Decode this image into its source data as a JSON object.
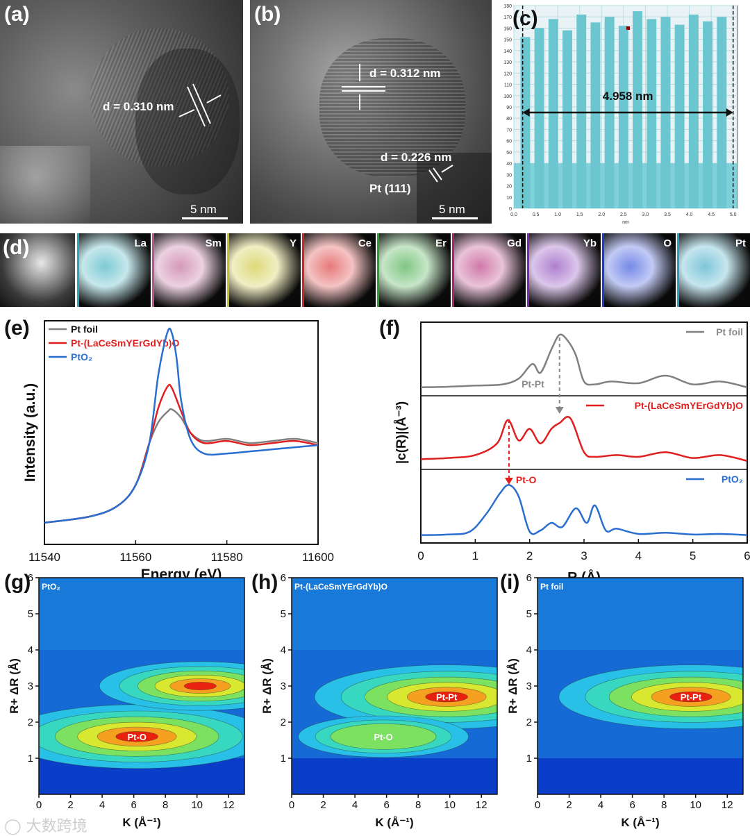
{
  "panels": {
    "a": {
      "label": "(a)",
      "d_spacing": "d = 0.310 nm",
      "scale": "5 nm"
    },
    "b": {
      "label": "(b)",
      "d_spacing_1": "d = 0.312 nm",
      "d_spacing_2": "d = 0.226 nm",
      "plane": "Pt (111)",
      "scale": "5 nm"
    },
    "c": {
      "label": "(c)",
      "distance": "4.958 nm",
      "x_unit": "nm"
    },
    "d": {
      "label": "(d)",
      "elements": [
        "La",
        "Sm",
        "Y",
        "Ce",
        "Er",
        "Gd",
        "Yb",
        "O",
        "Pt"
      ]
    },
    "e": {
      "label": "(e)"
    },
    "f": {
      "label": "(f)",
      "annotation_ptpt": "Pt-Pt",
      "annotation_pto": "Pt-O"
    },
    "g": {
      "label": "(g)",
      "inset": "PtO₂",
      "feature": "Pt-O"
    },
    "h": {
      "label": "(h)",
      "inset": "Pt-(LaCeSmYErGdYb)O",
      "feature_1": "Pt-Pt",
      "feature_2": "Pt-O"
    },
    "i": {
      "label": "(i)",
      "inset": "Pt foil",
      "feature": "Pt-Pt"
    }
  },
  "watermark": "大数跨境",
  "colors": {
    "pt_foil": "#808080",
    "sample": "#e02020",
    "pto2": "#2a6fd0",
    "tem_bar": "#7fd0d8"
  },
  "chart_data": [
    {
      "id": "c",
      "type": "bar",
      "title": "",
      "xlabel": "nm",
      "ylabel": "",
      "xlim": [
        0,
        5.1
      ],
      "ylim": [
        0,
        180
      ],
      "xticks": [
        "0.0",
        "0.5",
        "1.0",
        "1.5",
        "2.0",
        "2.5",
        "3.0",
        "3.5",
        "4.0",
        "4.5",
        "5.0"
      ],
      "yticks": [
        "0",
        "10",
        "20",
        "30",
        "40",
        "50",
        "60",
        "70",
        "80",
        "90",
        "100",
        "110",
        "120",
        "130",
        "140",
        "150",
        "160",
        "170",
        "180"
      ],
      "peak_positions": [
        0.26,
        0.58,
        0.9,
        1.22,
        1.54,
        1.86,
        2.18,
        2.5,
        2.82,
        3.14,
        3.46,
        3.78,
        4.1,
        4.42,
        4.74
      ],
      "peak_values": [
        152,
        160,
        168,
        158,
        172,
        165,
        170,
        162,
        175,
        168,
        170,
        163,
        172,
        166,
        170
      ],
      "baseline": 40,
      "marker_start": 0.2,
      "marker_end": 5.0
    },
    {
      "id": "e",
      "type": "line",
      "title": "",
      "xlabel": "Energy (eV)",
      "ylabel": "Intensity (a.u.)",
      "xlim": [
        11540,
        11600
      ],
      "xticks": [
        "11540",
        "11560",
        "11580",
        "11600"
      ],
      "legend_position": "top-left",
      "series": [
        {
          "name": "Pt foil",
          "x": [
            11540,
            11550,
            11556,
            11560,
            11563,
            11565,
            11567,
            11568,
            11570,
            11572,
            11575,
            11580,
            11585,
            11590,
            11595,
            11600
          ],
          "y": [
            0.07,
            0.1,
            0.15,
            0.25,
            0.45,
            0.55,
            0.6,
            0.61,
            0.57,
            0.5,
            0.46,
            0.47,
            0.45,
            0.46,
            0.47,
            0.45
          ]
        },
        {
          "name": "Pt-(LaCeSmYErGdYb)O",
          "x": [
            11540,
            11550,
            11556,
            11560,
            11563,
            11565,
            11567,
            11568,
            11570,
            11572,
            11575,
            11580,
            11585,
            11590,
            11595,
            11600
          ],
          "y": [
            0.07,
            0.1,
            0.15,
            0.25,
            0.45,
            0.62,
            0.72,
            0.71,
            0.6,
            0.5,
            0.45,
            0.46,
            0.44,
            0.45,
            0.46,
            0.44
          ]
        },
        {
          "name": "PtO₂",
          "x": [
            11540,
            11550,
            11556,
            11560,
            11563,
            11565,
            11567,
            11568,
            11569,
            11570,
            11572,
            11575,
            11580,
            11585,
            11590,
            11595,
            11600
          ],
          "y": [
            0.07,
            0.1,
            0.15,
            0.25,
            0.45,
            0.78,
            0.98,
            0.97,
            0.85,
            0.65,
            0.47,
            0.4,
            0.4,
            0.41,
            0.42,
            0.43,
            0.44
          ]
        }
      ]
    },
    {
      "id": "f",
      "type": "line",
      "title": "",
      "xlabel": "R (Å)",
      "ylabel": "|c(R)|(Å⁻³)",
      "xlim": [
        0,
        6
      ],
      "xticks": [
        "0",
        "1",
        "2",
        "3",
        "4",
        "5",
        "6"
      ],
      "legend_position": "top-right",
      "series": [
        {
          "name": "Pt foil",
          "x": [
            0,
            0.5,
            1,
            1.5,
            1.8,
            2.05,
            2.2,
            2.4,
            2.55,
            2.7,
            2.85,
            3.0,
            3.2,
            3.5,
            4,
            4.5,
            5,
            5.5,
            6
          ],
          "y": [
            0.05,
            0.06,
            0.08,
            0.1,
            0.2,
            0.45,
            0.3,
            0.7,
            0.95,
            0.85,
            0.6,
            0.15,
            0.1,
            0.15,
            0.12,
            0.25,
            0.1,
            0.15,
            0.05
          ]
        },
        {
          "name": "Pt-(LaCeSmYErGdYb)O",
          "x": [
            0,
            0.5,
            1,
            1.4,
            1.6,
            1.8,
            2.0,
            2.2,
            2.4,
            2.55,
            2.75,
            3.0,
            3.2,
            3.6,
            4,
            4.5,
            5,
            5.5,
            6
          ],
          "y": [
            0.08,
            0.1,
            0.15,
            0.35,
            0.75,
            0.4,
            0.6,
            0.35,
            0.6,
            0.7,
            0.78,
            0.2,
            0.12,
            0.15,
            0.12,
            0.2,
            0.1,
            0.15,
            0.05
          ]
        },
        {
          "name": "PtO₂",
          "x": [
            0,
            0.5,
            0.9,
            1.2,
            1.45,
            1.62,
            1.8,
            2.0,
            2.2,
            2.4,
            2.6,
            2.85,
            3.05,
            3.2,
            3.4,
            3.6,
            4,
            4.5,
            5,
            5.5,
            6
          ],
          "y": [
            0.04,
            0.05,
            0.1,
            0.4,
            0.75,
            0.9,
            0.7,
            0.1,
            0.12,
            0.25,
            0.18,
            0.5,
            0.25,
            0.55,
            0.12,
            0.15,
            0.06,
            0.08,
            0.05,
            0.06,
            0.04
          ]
        }
      ]
    },
    {
      "id": "g",
      "type": "heatmap",
      "xlabel": "K (Å⁻¹)",
      "ylabel": "R+ ΔR (Å)",
      "xlim": [
        0,
        13
      ],
      "ylim": [
        0,
        6
      ],
      "xticks": [
        "0",
        "2",
        "4",
        "6",
        "8",
        "10",
        "12"
      ],
      "yticks": [
        "1",
        "2",
        "3",
        "4",
        "5",
        "6"
      ],
      "maxima": [
        {
          "k": 6.2,
          "r": 1.6,
          "label": "Pt-O",
          "strength": 1.0
        },
        {
          "k": 10.2,
          "r": 3.0,
          "label": "",
          "strength": 0.7
        }
      ]
    },
    {
      "id": "h",
      "type": "heatmap",
      "xlabel": "K (Å⁻¹)",
      "ylabel": "R+ ΔR (Å)",
      "xlim": [
        0,
        13
      ],
      "ylim": [
        0,
        6
      ],
      "xticks": [
        "0",
        "2",
        "4",
        "6",
        "8",
        "10",
        "12"
      ],
      "yticks": [
        "1",
        "2",
        "3",
        "4",
        "5",
        "6"
      ],
      "maxima": [
        {
          "k": 9.8,
          "r": 2.7,
          "label": "Pt-Pt",
          "strength": 1.0
        },
        {
          "k": 5.8,
          "r": 1.6,
          "label": "Pt-O",
          "strength": 0.55
        }
      ]
    },
    {
      "id": "i",
      "type": "heatmap",
      "xlabel": "K (Å⁻¹)",
      "ylabel": "R+ ΔR (Å)",
      "xlim": [
        0,
        13
      ],
      "ylim": [
        0,
        6
      ],
      "xticks": [
        "0",
        "2",
        "4",
        "6",
        "8",
        "10",
        "12"
      ],
      "yticks": [
        "1",
        "2",
        "3",
        "4",
        "5",
        "6"
      ],
      "maxima": [
        {
          "k": 9.7,
          "r": 2.7,
          "label": "Pt-Pt",
          "strength": 1.0
        }
      ]
    }
  ]
}
